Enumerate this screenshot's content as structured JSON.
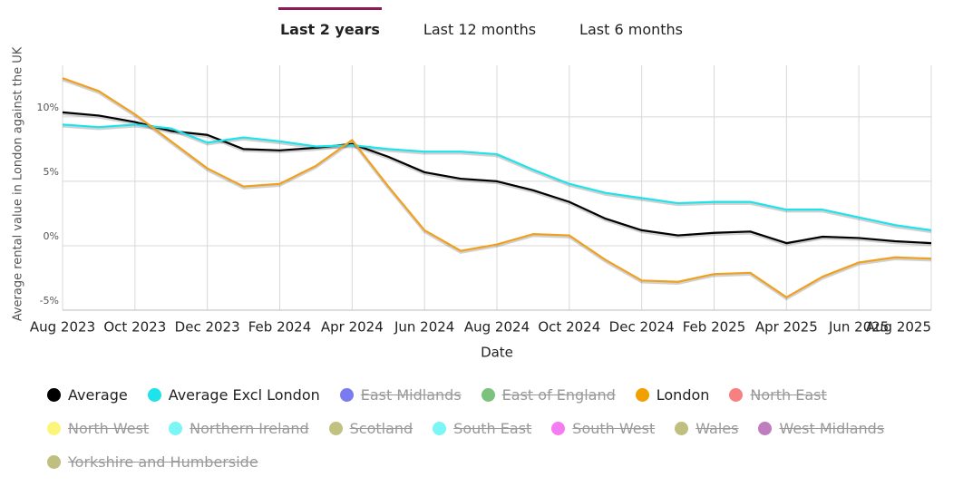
{
  "tabs": [
    "Last 2 years",
    "Last 12 months",
    "Last 6 months"
  ],
  "active_tab": 0,
  "chart_data": {
    "type": "line",
    "y_label": "Average rental value in London against the UK",
    "x_label": "Date",
    "categories": [
      "Aug 2023",
      null,
      "Oct 2023",
      null,
      "Dec 2023",
      null,
      "Feb 2024",
      null,
      "Apr 2024",
      null,
      "Jun 2024",
      null,
      "Aug 2024",
      null,
      "Oct 2024",
      null,
      "Dec 2024",
      null,
      "Feb 2025",
      null,
      "Apr 2025",
      null,
      "Jun 2025",
      null,
      "Aug 2025"
    ],
    "ylim": [
      -5,
      14
    ],
    "yticks": [
      {
        "value": -5,
        "label": "-5%"
      },
      {
        "value": 0,
        "label": "0%"
      },
      {
        "value": 5,
        "label": "5%"
      },
      {
        "value": 10,
        "label": "10%"
      }
    ],
    "grid": true,
    "series": [
      {
        "name": "Average",
        "color": "#000000",
        "visible": true,
        "values": [
          10.35,
          10.1,
          9.6,
          8.9,
          8.6,
          7.5,
          7.4,
          7.6,
          7.9,
          6.9,
          5.7,
          5.2,
          5.0,
          4.3,
          3.4,
          2.1,
          1.2,
          0.8,
          1.0,
          1.1,
          0.2,
          0.7,
          0.6,
          0.35,
          0.2
        ]
      },
      {
        "name": "Average Excl London",
        "color": "#1ee3ea",
        "visible": true,
        "values": [
          9.4,
          9.2,
          9.4,
          9.1,
          8.0,
          8.4,
          8.1,
          7.7,
          7.8,
          7.5,
          7.3,
          7.3,
          7.1,
          5.9,
          4.8,
          4.1,
          3.7,
          3.3,
          3.4,
          3.4,
          2.8,
          2.8,
          2.2,
          1.6,
          1.2
        ]
      },
      {
        "name": "East Midlands",
        "color": "#7b7bf0",
        "visible": false
      },
      {
        "name": "East of England",
        "color": "#7cc17c",
        "visible": false
      },
      {
        "name": "London",
        "color": "#f0a020",
        "visible": true,
        "values": [
          13.0,
          12.0,
          10.2,
          8.1,
          6.0,
          4.6,
          4.8,
          6.2,
          8.2,
          4.6,
          1.2,
          -0.4,
          0.1,
          0.9,
          0.8,
          -1.1,
          -2.7,
          -2.8,
          -2.2,
          -2.1,
          -4.0,
          -2.4,
          -1.3,
          -0.9,
          -1.0
        ]
      },
      {
        "name": "North East",
        "color": "#f78080",
        "visible": false
      },
      {
        "name": "North West",
        "color": "#fbf57c",
        "visible": false
      },
      {
        "name": "Northern Ireland",
        "color": "#7cf5f5",
        "visible": false
      },
      {
        "name": "Scotland",
        "color": "#c1c180",
        "visible": false
      },
      {
        "name": "South East",
        "color": "#7cf5f5",
        "visible": false
      },
      {
        "name": "South West",
        "color": "#f57cf0",
        "visible": false
      },
      {
        "name": "Wales",
        "color": "#bfbf80",
        "visible": false
      },
      {
        "name": "West Midlands",
        "color": "#bf7cbf",
        "visible": false
      },
      {
        "name": "Yorkshire and Humberside",
        "color": "#bfbf80",
        "visible": false
      }
    ]
  }
}
